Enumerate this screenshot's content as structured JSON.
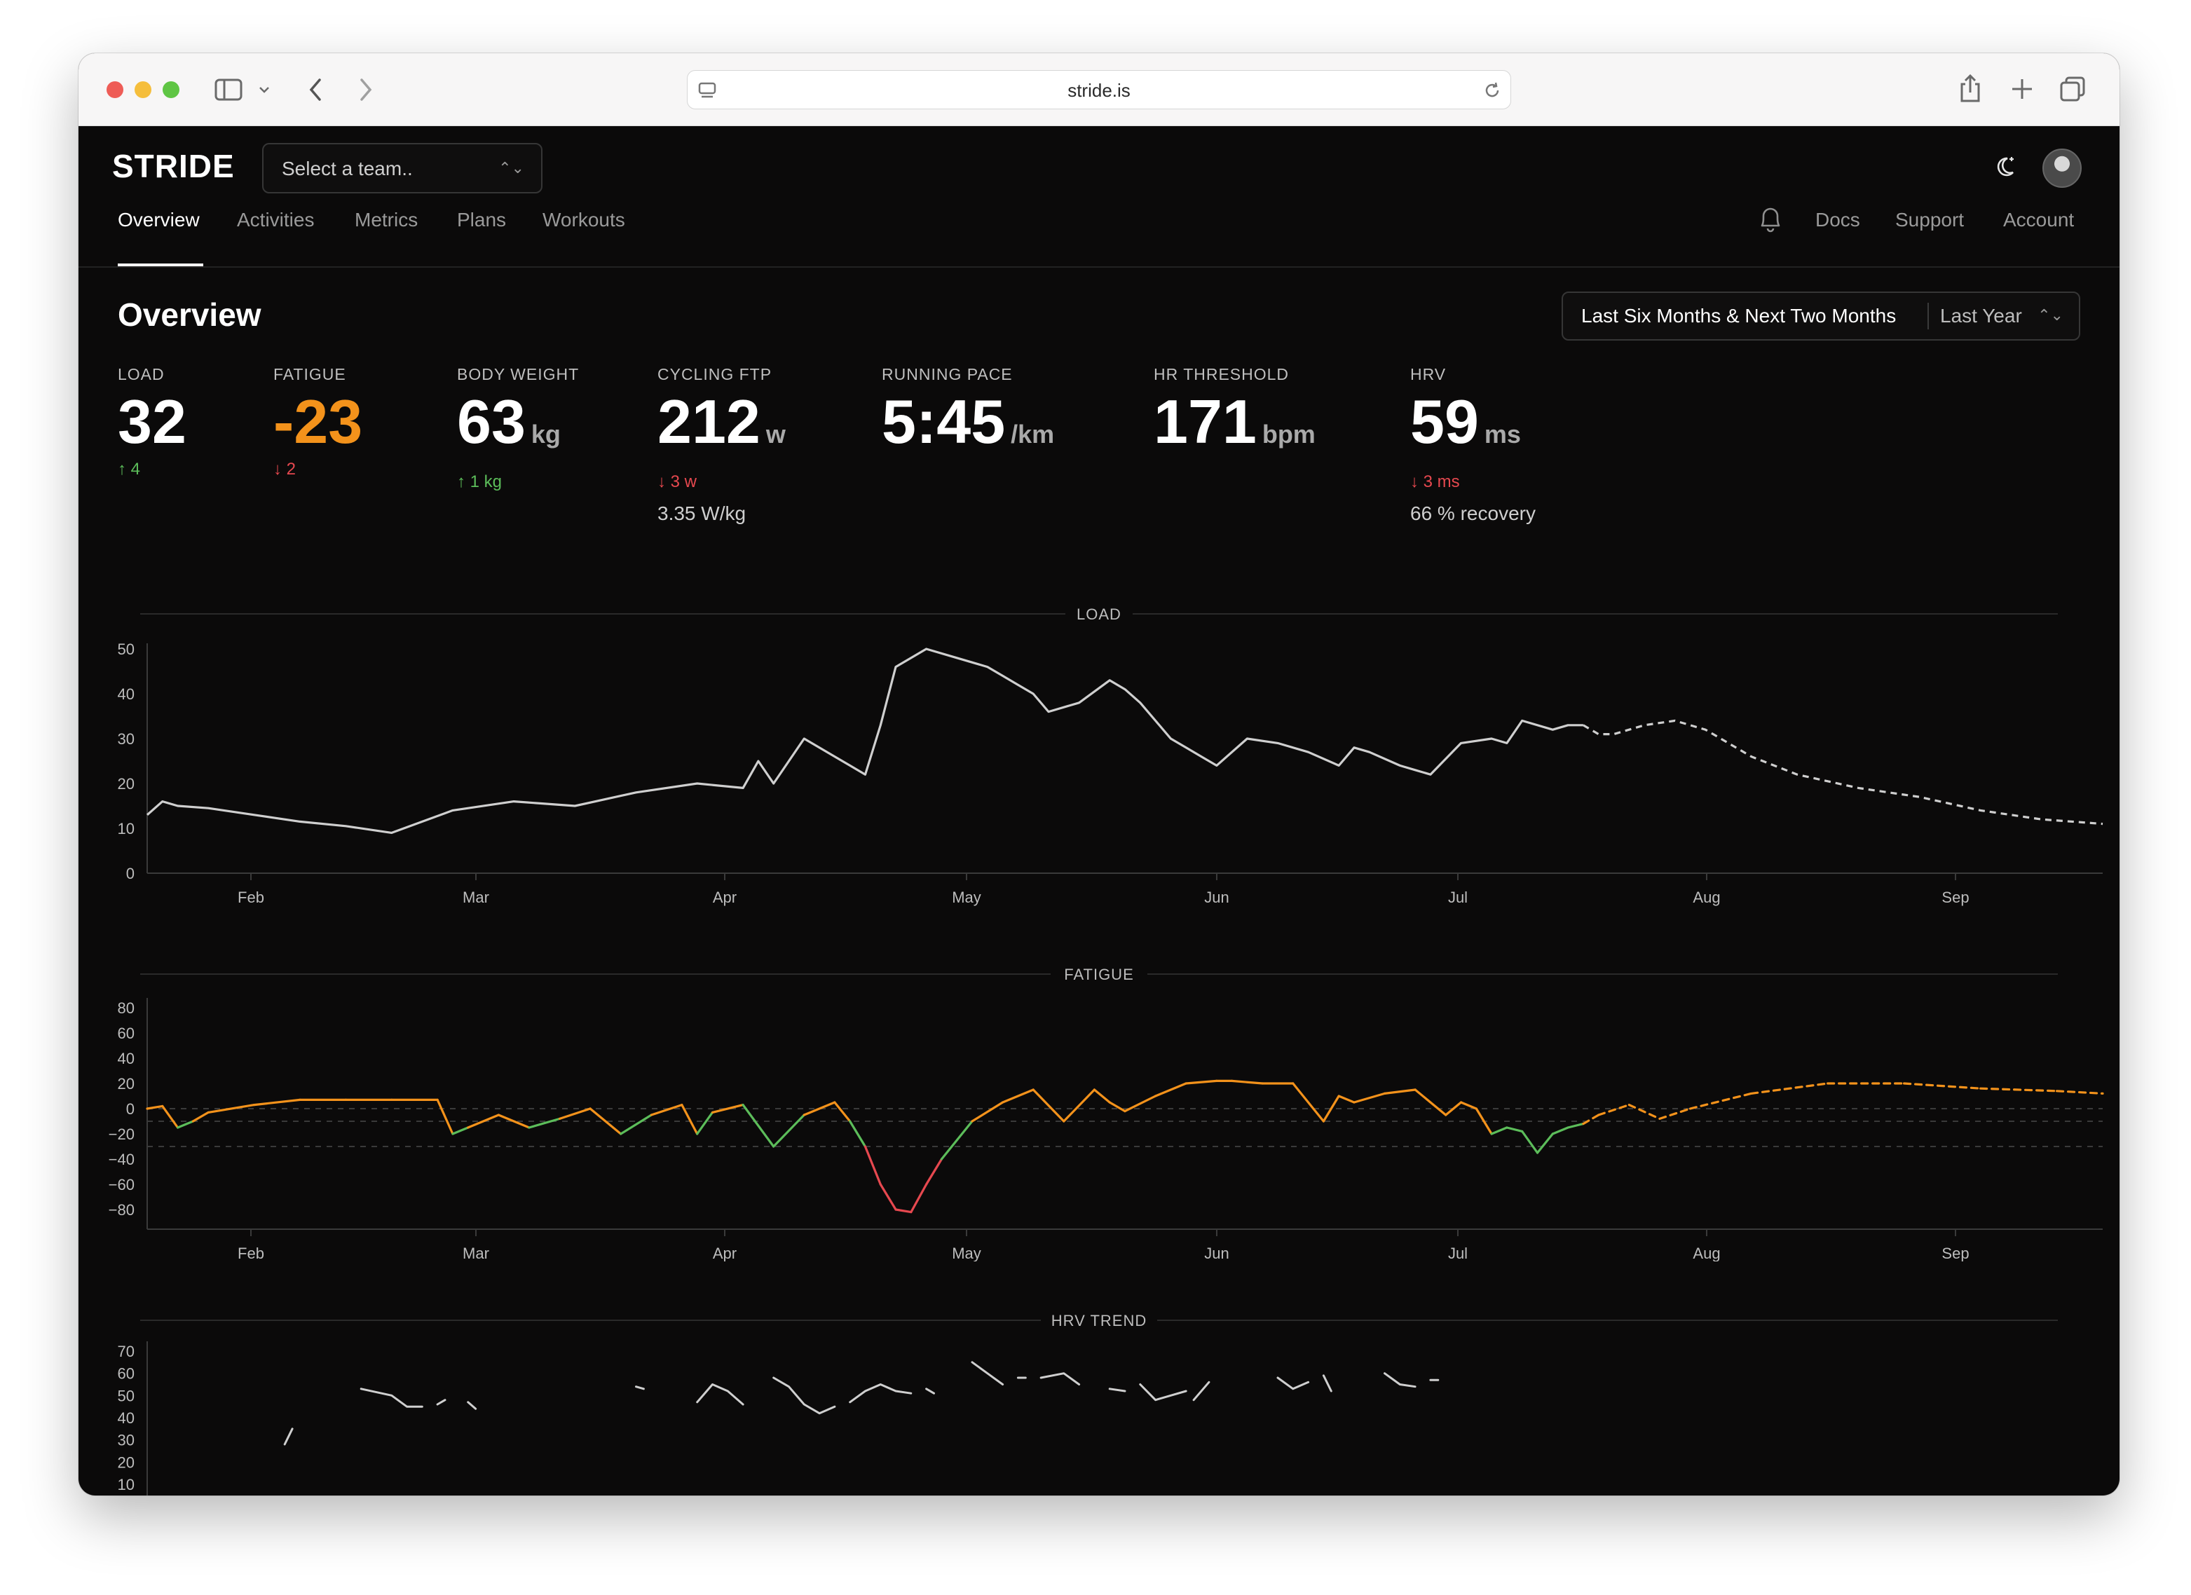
{
  "browser": {
    "url": "stride.is",
    "icons": {
      "sidebar": "sidebar-icon",
      "back": "chevron-left-icon",
      "forward": "chevron-right-icon",
      "reload": "reload-icon",
      "share": "share-icon",
      "new_tab": "plus-icon",
      "tabs": "tabs-icon"
    }
  },
  "app": {
    "brand": "STRIDE",
    "team_select": {
      "placeholder": "Select a team.."
    },
    "nav": [
      "Overview",
      "Activities",
      "Metrics",
      "Plans",
      "Workouts"
    ],
    "active_nav": "Overview",
    "right_links": [
      "Docs",
      "Support",
      "Account"
    ]
  },
  "overview": {
    "title": "Overview",
    "range": {
      "primary": "Last Six Months & Next Two Months",
      "secondary": "Last Year"
    },
    "stats": [
      {
        "label": "LOAD",
        "value": "32",
        "unit": "",
        "delta": "↑ 4",
        "delta_dir": "up",
        "extra": ""
      },
      {
        "label": "FATIGUE",
        "value": "-23",
        "unit": "",
        "delta": "↓ 2",
        "delta_dir": "down",
        "extra": "",
        "highlight": "#f3921b"
      },
      {
        "label": "BODY WEIGHT",
        "value": "63",
        "unit": "kg",
        "delta": "↑ 1 kg",
        "delta_dir": "up",
        "extra": ""
      },
      {
        "label": "CYCLING FTP",
        "value": "212",
        "unit": "w",
        "delta": "↓ 3 w",
        "delta_dir": "down",
        "extra": "3.35 W/kg"
      },
      {
        "label": "RUNNING PACE",
        "value": "5:45",
        "unit": "/km",
        "delta": "",
        "delta_dir": "",
        "extra": ""
      },
      {
        "label": "HR THRESHOLD",
        "value": "171",
        "unit": "bpm",
        "delta": "",
        "delta_dir": "",
        "extra": ""
      },
      {
        "label": "HRV",
        "value": "59",
        "unit": "ms",
        "delta": "↓ 3 ms",
        "delta_dir": "down",
        "extra": "66 % recovery"
      }
    ]
  },
  "colors": {
    "background": "#0b0a0a",
    "line": "#cfcfcf",
    "fatigue_orange": "#f3921b",
    "fatigue_green": "#5cbd5a",
    "fatigue_red": "#e6484f",
    "grid": "#2a2a2a"
  },
  "chart_data": [
    {
      "type": "line",
      "title": "LOAD",
      "x_ticks": [
        "Feb",
        "Mar",
        "Apr",
        "May",
        "Jun",
        "Jul",
        "Aug",
        "Sep"
      ],
      "ylim": [
        0,
        50
      ],
      "y_ticks": [
        0,
        10,
        20,
        30,
        40,
        50
      ],
      "x_unit": "days",
      "forecast_from": 188,
      "x": [
        0,
        2,
        4,
        8,
        14,
        20,
        26,
        32,
        40,
        48,
        56,
        64,
        72,
        78,
        80,
        82,
        86,
        90,
        92,
        94,
        96,
        98,
        102,
        106,
        110,
        112,
        114,
        116,
        118,
        122,
        126,
        128,
        130,
        132,
        134,
        136,
        138,
        140,
        144,
        148,
        152,
        156,
        158,
        160,
        164,
        166,
        168,
        172,
        176,
        178,
        180,
        184,
        186,
        188,
        190,
        192,
        196,
        200,
        204,
        206,
        210,
        216,
        224,
        232,
        240,
        248,
        256
      ],
      "values": [
        13,
        16,
        15,
        14.5,
        13,
        11.5,
        10.5,
        9,
        14,
        16,
        15,
        18,
        20,
        19,
        25,
        20,
        30,
        26,
        24,
        22,
        33,
        46,
        50,
        48,
        46,
        44,
        42,
        40,
        36,
        38,
        43,
        41,
        38,
        34,
        30,
        28,
        26,
        24,
        30,
        29,
        27,
        24,
        28,
        27,
        24,
        23,
        22,
        29,
        30,
        29,
        34,
        32,
        33,
        33,
        31,
        31,
        33,
        34,
        32,
        30,
        26,
        22,
        19,
        17,
        14,
        12,
        11
      ],
      "series_style": "line_then_dashed_forecast"
    },
    {
      "type": "line",
      "title": "FATIGUE",
      "x_ticks": [
        "Feb",
        "Mar",
        "Apr",
        "May",
        "Jun",
        "Jul",
        "Aug",
        "Sep"
      ],
      "ylim": [
        -80,
        80
      ],
      "y_ticks": [
        80,
        60,
        40,
        20,
        0,
        -20,
        -40,
        -60,
        -80
      ],
      "reference_lines": [
        0,
        -10,
        -30
      ],
      "x_unit": "days",
      "forecast_from": 188,
      "x": [
        0,
        2,
        4,
        6,
        8,
        14,
        20,
        26,
        32,
        38,
        40,
        42,
        46,
        50,
        54,
        58,
        62,
        66,
        70,
        72,
        74,
        78,
        82,
        86,
        90,
        92,
        94,
        96,
        98,
        100,
        102,
        104,
        108,
        112,
        116,
        120,
        124,
        126,
        128,
        132,
        136,
        140,
        142,
        146,
        150,
        154,
        156,
        158,
        162,
        166,
        170,
        172,
        174,
        176,
        178,
        180,
        182,
        184,
        186,
        188,
        190,
        194,
        198,
        202,
        210,
        220,
        230,
        240,
        250,
        256
      ],
      "values": [
        0,
        2,
        -15,
        -10,
        -3,
        3,
        7,
        7,
        7,
        7,
        -20,
        -15,
        -5,
        -15,
        -8,
        0,
        -20,
        -5,
        3,
        -20,
        -3,
        3,
        -30,
        -5,
        5,
        -10,
        -30,
        -60,
        -80,
        -82,
        -60,
        -40,
        -10,
        5,
        15,
        -10,
        15,
        5,
        -2,
        10,
        20,
        22,
        22,
        20,
        20,
        -10,
        10,
        5,
        12,
        15,
        -5,
        5,
        0,
        -20,
        -15,
        -18,
        -35,
        -20,
        -15,
        -12,
        -5,
        3,
        -8,
        0,
        12,
        20,
        20,
        16,
        14,
        12
      ],
      "color_rule": "orange above -10, green between -30 and -10, red below -30, dashed orange forecast"
    },
    {
      "type": "line",
      "title": "HRV TREND",
      "x_ticks": [],
      "ylim": [
        10,
        70
      ],
      "y_ticks": [
        70,
        60,
        50,
        40,
        30,
        20,
        10
      ],
      "segments": [
        {
          "x": [
            18,
            19
          ],
          "values": [
            28,
            35
          ]
        },
        {
          "x": [
            28,
            32,
            34,
            36
          ],
          "values": [
            53,
            50,
            45,
            45
          ]
        },
        {
          "x": [
            38,
            39
          ],
          "values": [
            46,
            48
          ]
        },
        {
          "x": [
            42,
            43
          ],
          "values": [
            47,
            44
          ]
        },
        {
          "x": [
            64,
            65
          ],
          "values": [
            54,
            53
          ]
        },
        {
          "x": [
            72,
            74,
            76,
            78
          ],
          "values": [
            47,
            55,
            52,
            46
          ]
        },
        {
          "x": [
            82,
            84,
            86,
            88,
            90
          ],
          "values": [
            58,
            54,
            46,
            42,
            45
          ]
        },
        {
          "x": [
            92,
            94,
            96,
            98,
            100
          ],
          "values": [
            47,
            52,
            55,
            52,
            51
          ]
        },
        {
          "x": [
            102,
            103
          ],
          "values": [
            53,
            51
          ]
        },
        {
          "x": [
            108,
            110,
            112
          ],
          "values": [
            65,
            60,
            55
          ]
        },
        {
          "x": [
            114,
            115
          ],
          "values": [
            58,
            58
          ]
        },
        {
          "x": [
            117,
            120,
            122
          ],
          "values": [
            58,
            60,
            55
          ]
        },
        {
          "x": [
            126,
            128
          ],
          "values": [
            53,
            52
          ]
        },
        {
          "x": [
            130,
            132,
            134,
            136
          ],
          "values": [
            55,
            48,
            50,
            52
          ]
        },
        {
          "x": [
            137,
            139
          ],
          "values": [
            48,
            56
          ]
        },
        {
          "x": [
            148,
            150,
            152
          ],
          "values": [
            58,
            53,
            56
          ]
        },
        {
          "x": [
            154,
            155
          ],
          "values": [
            59,
            52
          ]
        },
        {
          "x": [
            162,
            164,
            166
          ],
          "values": [
            60,
            55,
            54
          ]
        },
        {
          "x": [
            168,
            169
          ],
          "values": [
            57,
            57
          ]
        }
      ]
    }
  ]
}
